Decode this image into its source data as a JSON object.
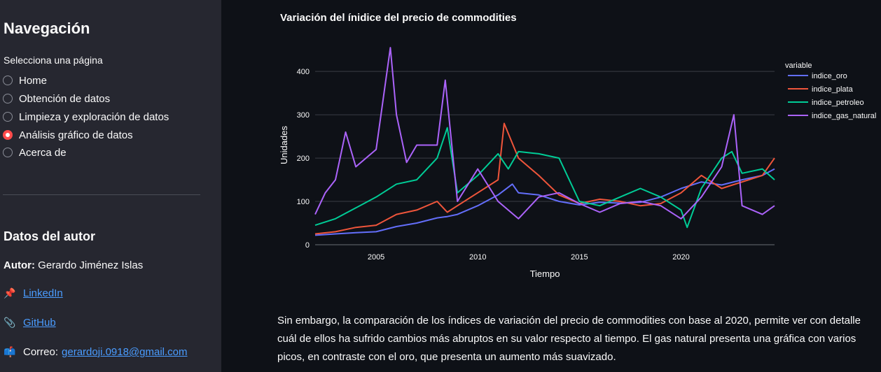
{
  "sidebar": {
    "title": "Navegación",
    "radio_caption": "Selecciona una página",
    "pages": [
      {
        "label": "Home",
        "selected": false
      },
      {
        "label": "Obtención de datos",
        "selected": false
      },
      {
        "label": "Limpieza y exploración de datos",
        "selected": false
      },
      {
        "label": "Análisis gráfico de datos",
        "selected": true
      },
      {
        "label": "Acerca de",
        "selected": false
      }
    ],
    "author_section": {
      "title": "Datos del autor",
      "author_label": "Autor:",
      "author_name": "Gerardo Jiménez Islas",
      "linkedin_icon": "📌",
      "linkedin_label": "LinkedIn",
      "github_icon": "📎",
      "github_label": "GitHub",
      "email_icon": "📫",
      "email_prefix": "Correo:",
      "email_address": "gerardoji.0918@gmail.com"
    }
  },
  "main": {
    "paragraph": "Sin embargo, la comparación de los índices de variación del precio de commodities con base al 2020, permite ver con detalle cuál de ellos ha sufrido cambios más abruptos en su valor respecto al tiempo. El gas natural presenta una gráfica con varios picos, en contraste con el oro, que presenta un aumento más suavizado."
  },
  "chart_data": {
    "type": "line",
    "title": "Variación del ínidice del precio de commodities",
    "xlabel": "Tiempo",
    "ylabel": "Unidades",
    "xlim": [
      2002,
      2024.6
    ],
    "ylim": [
      0,
      460
    ],
    "xticks": [
      2005,
      2010,
      2015,
      2020
    ],
    "yticks": [
      0,
      100,
      200,
      300,
      400
    ],
    "grid": true,
    "legend_title": "variable",
    "legend_position": "right",
    "series": [
      {
        "name": "indice_oro",
        "color": "#636efa",
        "x": [
          2002,
          2003,
          2004,
          2005,
          2006,
          2007,
          2008,
          2008.5,
          2009,
          2010,
          2011,
          2011.7,
          2012,
          2013,
          2014,
          2015,
          2016,
          2017,
          2018,
          2019,
          2020,
          2021,
          2022,
          2023,
          2024,
          2024.6
        ],
        "y": [
          22,
          25,
          28,
          30,
          42,
          50,
          62,
          65,
          70,
          90,
          115,
          140,
          120,
          115,
          100,
          92,
          98,
          96,
          98,
          110,
          130,
          145,
          138,
          150,
          160,
          175
        ]
      },
      {
        "name": "indice_plata",
        "color": "#ef553b",
        "x": [
          2002,
          2003,
          2004,
          2005,
          2006,
          2007,
          2008,
          2008.5,
          2009,
          2010,
          2011,
          2011.3,
          2012,
          2013,
          2014,
          2015,
          2016,
          2017,
          2018,
          2019,
          2020,
          2021,
          2022,
          2023,
          2024,
          2024.6
        ],
        "y": [
          25,
          30,
          40,
          45,
          70,
          80,
          100,
          75,
          90,
          120,
          150,
          280,
          200,
          160,
          115,
          95,
          105,
          100,
          90,
          95,
          120,
          160,
          130,
          145,
          160,
          200
        ]
      },
      {
        "name": "indice_petroleo",
        "color": "#00cc96",
        "x": [
          2002,
          2003,
          2004,
          2005,
          2006,
          2007,
          2008,
          2008.5,
          2009,
          2010,
          2011,
          2011.5,
          2012,
          2013,
          2014,
          2015,
          2016,
          2017,
          2018,
          2019,
          2020,
          2020.3,
          2021,
          2022,
          2022.5,
          2023,
          2024,
          2024.6
        ],
        "y": [
          45,
          60,
          85,
          110,
          140,
          150,
          200,
          270,
          120,
          160,
          210,
          175,
          215,
          210,
          200,
          100,
          90,
          110,
          130,
          110,
          80,
          40,
          130,
          200,
          215,
          165,
          175,
          150
        ]
      },
      {
        "name": "indice_gas_natural",
        "color": "#ab63fa",
        "x": [
          2002,
          2002.5,
          2003,
          2003.5,
          2004,
          2005,
          2005.7,
          2006,
          2006.5,
          2007,
          2008,
          2008.4,
          2009,
          2010,
          2011,
          2012,
          2013,
          2014,
          2015,
          2016,
          2017,
          2018,
          2019,
          2020,
          2021,
          2022,
          2022.6,
          2023,
          2024,
          2024.6
        ],
        "y": [
          70,
          120,
          150,
          260,
          180,
          220,
          455,
          300,
          190,
          230,
          230,
          380,
          100,
          175,
          100,
          60,
          110,
          120,
          95,
          75,
          95,
          100,
          90,
          60,
          110,
          180,
          300,
          90,
          70,
          90
        ]
      }
    ]
  }
}
